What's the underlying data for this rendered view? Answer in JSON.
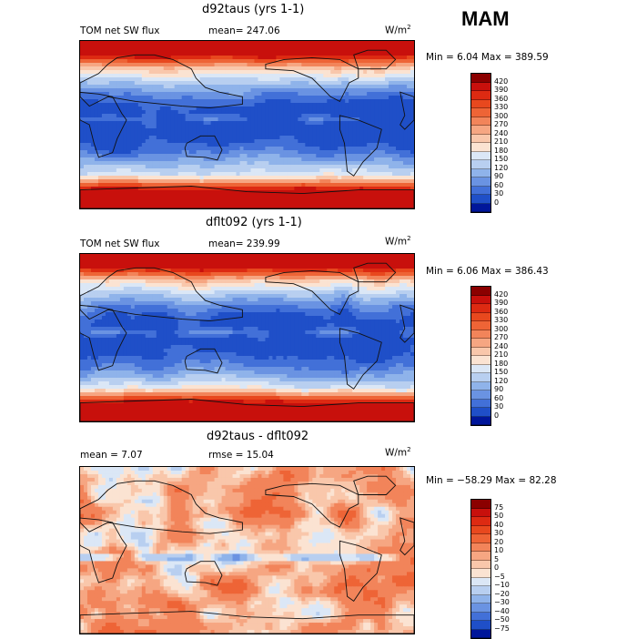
{
  "season": "MAM",
  "panels": [
    {
      "title": "d92taus (yrs 1-1)",
      "left_label": "TOM net SW flux",
      "stat_label": "mean= 247.06",
      "units": "W/m",
      "units_exp": "2",
      "minmax": "Min =   6.04 Max = 389.59",
      "map_type": "flux",
      "colorbar_labels": [
        "420",
        "390",
        "360",
        "330",
        "300",
        "270",
        "240",
        "210",
        "180",
        "150",
        "120",
        "90",
        "60",
        "30",
        "0"
      ],
      "colorbar_colors": [
        "#8b0000",
        "#c8100c",
        "#dd2a12",
        "#e8481e",
        "#ee6436",
        "#f2845a",
        "#f6a682",
        "#f9c7ab",
        "#fbe3d2",
        "#dbe7f6",
        "#b8cff0",
        "#8fb3ea",
        "#6a93e2",
        "#4270d8",
        "#1f4fc8",
        "#00169a"
      ]
    },
    {
      "title": "dflt092 (yrs 1-1)",
      "left_label": "TOM net SW flux",
      "stat_label": "mean= 239.99",
      "units": "W/m",
      "units_exp": "2",
      "minmax": "Min =   6.06 Max = 386.43",
      "map_type": "flux",
      "colorbar_labels": [
        "420",
        "390",
        "360",
        "330",
        "300",
        "270",
        "240",
        "210",
        "180",
        "150",
        "120",
        "90",
        "60",
        "30",
        "0"
      ],
      "colorbar_colors": [
        "#8b0000",
        "#c8100c",
        "#dd2a12",
        "#e8481e",
        "#ee6436",
        "#f2845a",
        "#f6a682",
        "#f9c7ab",
        "#fbe3d2",
        "#dbe7f6",
        "#b8cff0",
        "#8fb3ea",
        "#6a93e2",
        "#4270d8",
        "#1f4fc8",
        "#00169a"
      ]
    },
    {
      "title": "d92taus - dflt092",
      "left_label": "mean =    7.07",
      "stat_label": "rmse =   15.04",
      "units": "W/m",
      "units_exp": "2",
      "minmax": "Min = −58.29 Max =  82.28",
      "map_type": "diff",
      "colorbar_labels": [
        "75",
        "50",
        "40",
        "30",
        "20",
        "10",
        "5",
        "0",
        "−5",
        "−10",
        "−20",
        "−30",
        "−40",
        "−50",
        "−75"
      ],
      "colorbar_colors": [
        "#8b0000",
        "#c8100c",
        "#dd2a12",
        "#e8481e",
        "#ee6436",
        "#f2845a",
        "#f6a682",
        "#f9c7ab",
        "#fbe3d2",
        "#dbe7f6",
        "#b8cff0",
        "#8fb3ea",
        "#6a93e2",
        "#4270d8",
        "#1f4fc8",
        "#00169a"
      ]
    }
  ],
  "chart_data": [
    {
      "type": "heatmap",
      "title": "d92taus (yrs 1-1)",
      "variable": "TOM net SW flux",
      "mean": 247.06,
      "min": 6.04,
      "max": 389.59,
      "units": "W/m2",
      "levels": [
        0,
        30,
        60,
        90,
        120,
        150,
        180,
        210,
        240,
        270,
        300,
        330,
        360,
        390,
        420
      ]
    },
    {
      "type": "heatmap",
      "title": "dflt092 (yrs 1-1)",
      "variable": "TOM net SW flux",
      "mean": 239.99,
      "min": 6.06,
      "max": 386.43,
      "units": "W/m2",
      "levels": [
        0,
        30,
        60,
        90,
        120,
        150,
        180,
        210,
        240,
        270,
        300,
        330,
        360,
        390,
        420
      ]
    },
    {
      "type": "heatmap",
      "title": "d92taus - dflt092",
      "mean": 7.07,
      "rmse": 15.04,
      "min": -58.29,
      "max": 82.28,
      "units": "W/m2",
      "levels": [
        -75,
        -50,
        -40,
        -30,
        -20,
        -10,
        -5,
        0,
        5,
        10,
        20,
        30,
        40,
        50,
        75
      ]
    }
  ]
}
